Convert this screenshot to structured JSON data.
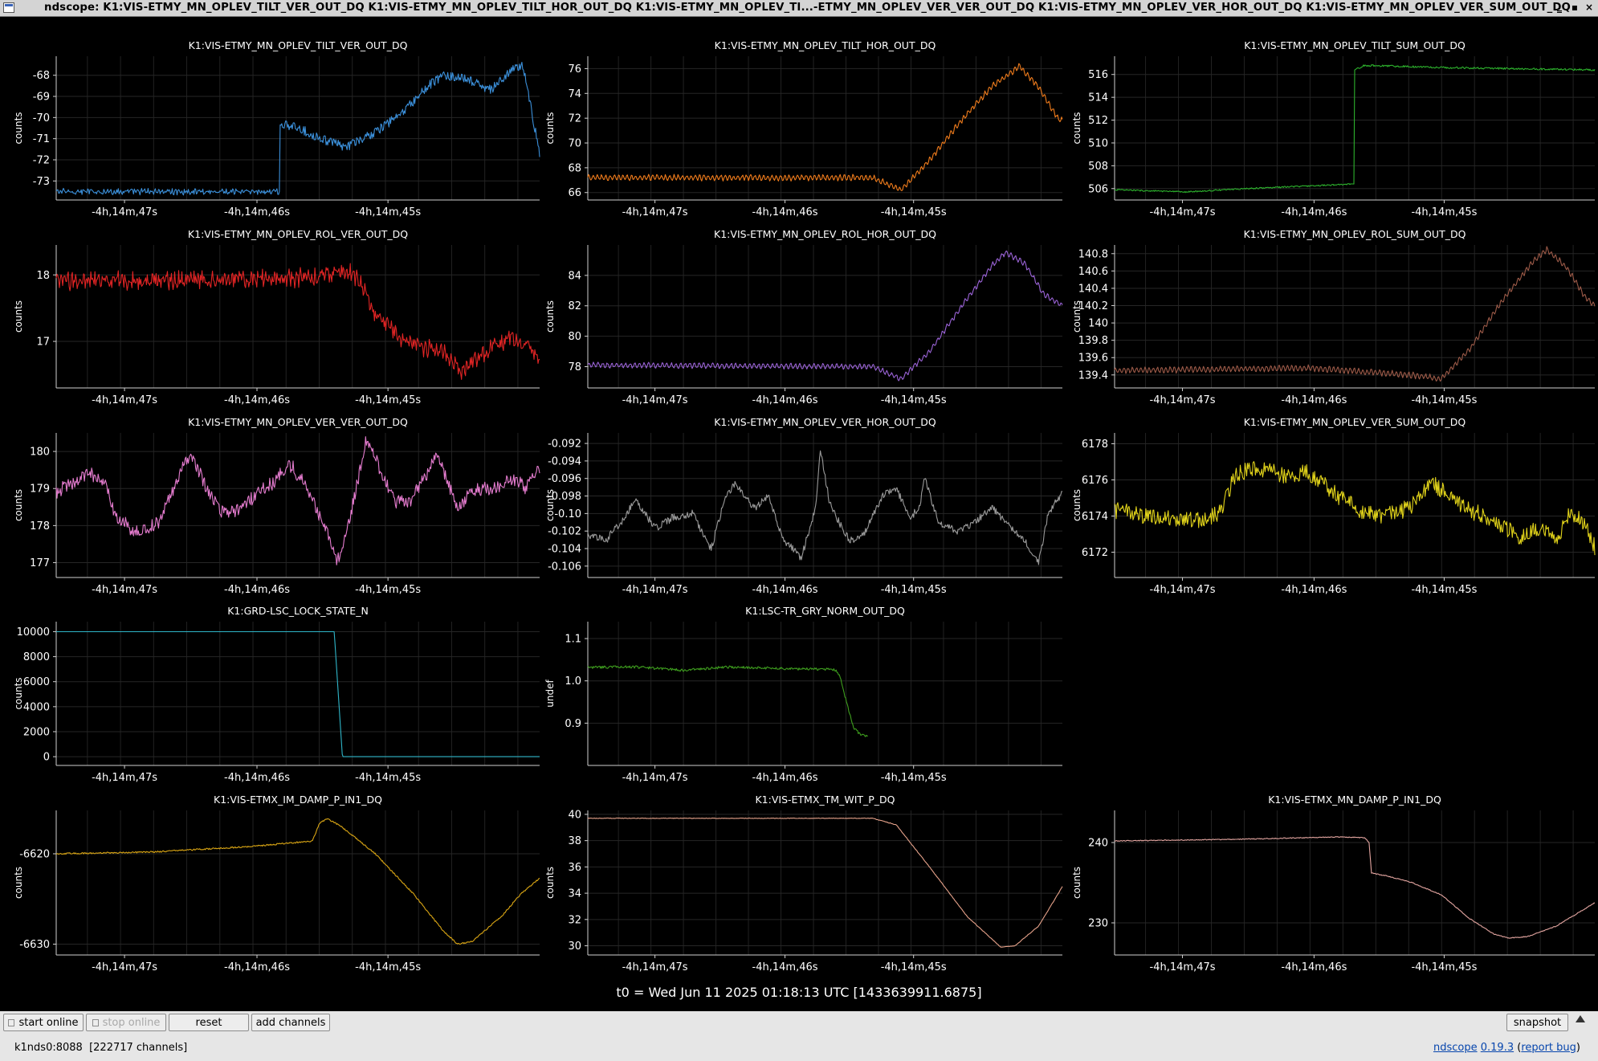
{
  "window": {
    "title": "ndscope: K1:VIS-ETMY_MN_OPLEV_TILT_VER_OUT_DQ K1:VIS-ETMY_MN_OPLEV_TILT_HOR_OUT_DQ K1:VIS-ETMY_MN_OPLEV_TI...-ETMY_MN_OPLEV_VER_VER_OUT_DQ K1:VIS-ETMY_MN_OPLEV_VER_HOR_OUT_DQ K1:VIS-ETMY_MN_OPLEV_VER_SUM_OUT_DQ",
    "minimize_glyph": "‗",
    "maximize_glyph": "▪",
    "close_glyph": "×"
  },
  "x_tick_labels": [
    "-4h,14m,47s",
    "-4h,14m,46s",
    "-4h,14m,45s"
  ],
  "t0": "t0 = Wed Jun 11 2025 01:18:13 UTC [1433639911.6875]",
  "plots": [
    {
      "title": "K1:VIS-ETMY_MN_OPLEV_TILT_VER_OUT_DQ",
      "ylabel": "counts",
      "color": "#3b8fd9",
      "yticks": [
        "-68",
        "-69",
        "-70",
        "-71",
        "-72",
        "-73"
      ],
      "ytick_values": [
        -68,
        -69,
        -70,
        -71,
        -72,
        -73
      ],
      "ylim": [
        -73.9,
        -67.1
      ],
      "shape": "tiltver"
    },
    {
      "title": "K1:VIS-ETMY_MN_OPLEV_TILT_HOR_OUT_DQ",
      "ylabel": "counts",
      "color": "#f07c1c",
      "yticks": [
        "76",
        "74",
        "72",
        "70",
        "68",
        "66"
      ],
      "ytick_values": [
        76,
        74,
        72,
        70,
        68,
        66
      ],
      "ylim": [
        65.4,
        77
      ],
      "shape": "tilthor"
    },
    {
      "title": "K1:VIS-ETMY_MN_OPLEV_TILT_SUM_OUT_DQ",
      "ylabel": "counts",
      "color": "#2db22d",
      "yticks": [
        "516",
        "514",
        "512",
        "510",
        "508",
        "506"
      ],
      "ytick_values": [
        516,
        514,
        512,
        510,
        508,
        506
      ],
      "ylim": [
        505,
        517.6
      ],
      "shape": "tiltsum"
    },
    {
      "title": "K1:VIS-ETMY_MN_OPLEV_ROL_VER_OUT_DQ",
      "ylabel": "counts",
      "color": "#e02424",
      "yticks": [
        "18",
        "17"
      ],
      "ytick_values": [
        18,
        17
      ],
      "ylim": [
        16.3,
        18.45
      ],
      "shape": "rolver"
    },
    {
      "title": "K1:VIS-ETMY_MN_OPLEV_ROL_HOR_OUT_DQ",
      "ylabel": "counts",
      "color": "#9a63d6",
      "yticks": [
        "84",
        "82",
        "80",
        "78"
      ],
      "ytick_values": [
        84,
        82,
        80,
        78
      ],
      "ylim": [
        76.6,
        86
      ],
      "shape": "rolhor"
    },
    {
      "title": "K1:VIS-ETMY_MN_OPLEV_ROL_SUM_OUT_DQ",
      "ylabel": "counts",
      "color": "#9c5a48",
      "yticks": [
        "140.8",
        "140.6",
        "140.4",
        "140.2",
        "140",
        "139.8",
        "139.6",
        "139.4"
      ],
      "ytick_values": [
        140.8,
        140.6,
        140.4,
        140.2,
        140,
        139.8,
        139.6,
        139.4
      ],
      "ylim": [
        139.25,
        140.9
      ],
      "shape": "rolsum"
    },
    {
      "title": "K1:VIS-ETMY_MN_OPLEV_VER_VER_OUT_DQ",
      "ylabel": "counts",
      "color": "#e57ccf",
      "yticks": [
        "180",
        "179",
        "178",
        "177"
      ],
      "ytick_values": [
        180,
        179,
        178,
        177
      ],
      "ylim": [
        176.6,
        180.5
      ],
      "shape": "verver"
    },
    {
      "title": "K1:VIS-ETMY_MN_OPLEV_VER_HOR_OUT_DQ",
      "ylabel": "counts",
      "color": "#9a9a9a",
      "yticks": [
        "-0.092",
        "-0.094",
        "-0.096",
        "-0.098",
        "-0.10",
        "-0.102",
        "-0.104",
        "-0.106"
      ],
      "ytick_values": [
        -0.092,
        -0.094,
        -0.096,
        -0.098,
        -0.1,
        -0.102,
        -0.104,
        -0.106
      ],
      "ylim": [
        -0.1073,
        -0.0908
      ],
      "shape": "verhor"
    },
    {
      "title": "K1:VIS-ETMY_MN_OPLEV_VER_SUM_OUT_DQ",
      "ylabel": "counts",
      "color": "#e0d21a",
      "yticks": [
        "6178",
        "6176",
        "6174",
        "6172"
      ],
      "ytick_values": [
        6178,
        6176,
        6174,
        6172
      ],
      "ylim": [
        6170.6,
        6178.6
      ],
      "shape": "versum"
    },
    {
      "title": "K1:GRD-LSC_LOCK_STATE_N",
      "ylabel": "counts",
      "color": "#2fb6c9",
      "yticks": [
        "10000",
        "8000",
        "6000",
        "4000",
        "2000",
        "0"
      ],
      "ytick_values": [
        10000,
        8000,
        6000,
        4000,
        2000,
        0
      ],
      "ylim": [
        -700,
        10800
      ],
      "shape": "guardian"
    },
    {
      "title": "K1:LSC-TR_GRY_NORM_OUT_DQ",
      "ylabel": "undef",
      "color": "#3e9e1e",
      "yticks": [
        "1.1",
        "1.0",
        "0.9"
      ],
      "ytick_values": [
        1.1,
        1.0,
        0.9
      ],
      "ylim": [
        0.8,
        1.14
      ],
      "shape": "trgry"
    },
    null,
    {
      "title": "K1:VIS-ETMX_IM_DAMP_P_IN1_DQ",
      "ylabel": "counts",
      "color": "#d9a514",
      "yticks": [
        "-6620",
        "-6630"
      ],
      "ytick_values": [
        -6620,
        -6630
      ],
      "ylim": [
        -6631.2,
        -6615.2
      ],
      "shape": "imdamp"
    },
    {
      "title": "K1:VIS-ETMX_TM_WIT_P_DQ",
      "ylabel": "counts",
      "color": "#e6a28a",
      "yticks": [
        "40",
        "38",
        "36",
        "34",
        "32",
        "30"
      ],
      "ytick_values": [
        40,
        38,
        36,
        34,
        32,
        30
      ],
      "ylim": [
        29.3,
        40.3
      ],
      "shape": "tmwit"
    },
    {
      "title": "K1:VIS-ETMX_MN_DAMP_P_IN1_DQ",
      "ylabel": "counts",
      "color": "#e3a5a0",
      "yticks": [
        "240",
        "230"
      ],
      "ytick_values": [
        240,
        230
      ],
      "ylim": [
        226,
        244
      ],
      "shape": "mndamp"
    }
  ],
  "controls": {
    "start_online": "start online",
    "stop_online": "stop online",
    "reset": "reset",
    "add_channels": "add channels",
    "snapshot": "snapshot"
  },
  "status": {
    "server": "k1nds0:8088",
    "channels": "[222717 channels]",
    "app_name": "ndscope",
    "version": "0.19.3",
    "report_bug": "report bug"
  }
}
